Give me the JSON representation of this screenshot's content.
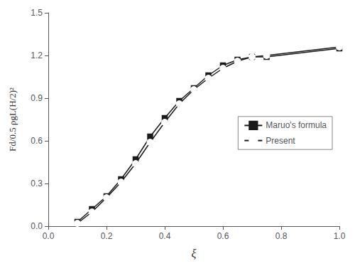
{
  "chart_data": {
    "type": "line",
    "xlabel": "ξ",
    "ylabel": "Fd/0.5 ρgL(H/2)²",
    "series": [
      {
        "name": "Maruo's formula",
        "color": "#1a1a1a",
        "marker": "square",
        "x": [
          0.1,
          0.15,
          0.2,
          0.25,
          0.3,
          0.35,
          0.4,
          0.45,
          0.5,
          0.55,
          0.6,
          0.65,
          0.7,
          0.75,
          1.0
        ],
        "values": [
          0.03,
          0.12,
          0.21,
          0.33,
          0.47,
          0.63,
          0.76,
          0.88,
          0.97,
          1.06,
          1.13,
          1.17,
          1.19,
          1.19,
          1.25
        ]
      },
      {
        "name": "Present",
        "color": "#1a1a1a",
        "marker": "circle_open",
        "x": [
          0.1,
          0.15,
          0.2,
          0.25,
          0.3,
          0.35,
          0.4,
          0.45,
          0.5,
          0.55,
          0.6,
          0.65,
          0.7,
          0.75,
          1.0
        ],
        "values": [
          0.02,
          0.1,
          0.2,
          0.31,
          0.44,
          0.59,
          0.73,
          0.86,
          0.96,
          1.04,
          1.11,
          1.16,
          1.19,
          1.2,
          1.26
        ]
      }
    ],
    "xlim": [
      0.0,
      1.0
    ],
    "ylim": [
      0.0,
      1.5
    ],
    "xticks": [
      {
        "value": 0.0,
        "label": "0.0"
      },
      0.2,
      0.4,
      0.6,
      0.8,
      {
        "value": 1.0,
        "label": "1.0"
      }
    ],
    "yticks": [
      {
        "value": 0.0,
        "label": "0.0"
      },
      0.3,
      0.6,
      0.9,
      1.2,
      1.5
    ],
    "grid": false,
    "legend": "right"
  }
}
